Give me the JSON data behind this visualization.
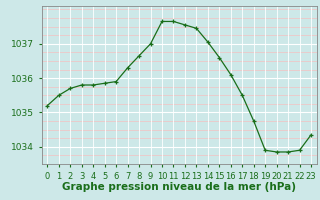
{
  "hours": [
    0,
    1,
    2,
    3,
    4,
    5,
    6,
    7,
    8,
    9,
    10,
    11,
    12,
    13,
    14,
    15,
    16,
    17,
    18,
    19,
    20,
    21,
    22,
    23
  ],
  "pressure": [
    1035.2,
    1035.5,
    1035.7,
    1035.8,
    1035.8,
    1035.85,
    1035.9,
    1036.3,
    1036.65,
    1037.0,
    1037.65,
    1037.65,
    1037.55,
    1037.45,
    1037.05,
    1036.6,
    1036.1,
    1035.5,
    1034.75,
    1033.9,
    1033.85,
    1033.85,
    1033.9,
    1034.35
  ],
  "bg_color": "#cde8e8",
  "grid_color_h": "#f5c0c0",
  "grid_color_v": "#ffffff",
  "line_color": "#1a6e1a",
  "marker_color": "#1a6e1a",
  "axis_label_color": "#1a6e1a",
  "tick_color": "#1a6e1a",
  "spine_color": "#888888",
  "xlabel": "Graphe pression niveau de la mer (hPa)",
  "ylim": [
    1033.5,
    1038.1
  ],
  "yticks": [
    1034,
    1035,
    1036,
    1037
  ],
  "label_fontsize": 6.5,
  "xlabel_fontsize": 7.5
}
